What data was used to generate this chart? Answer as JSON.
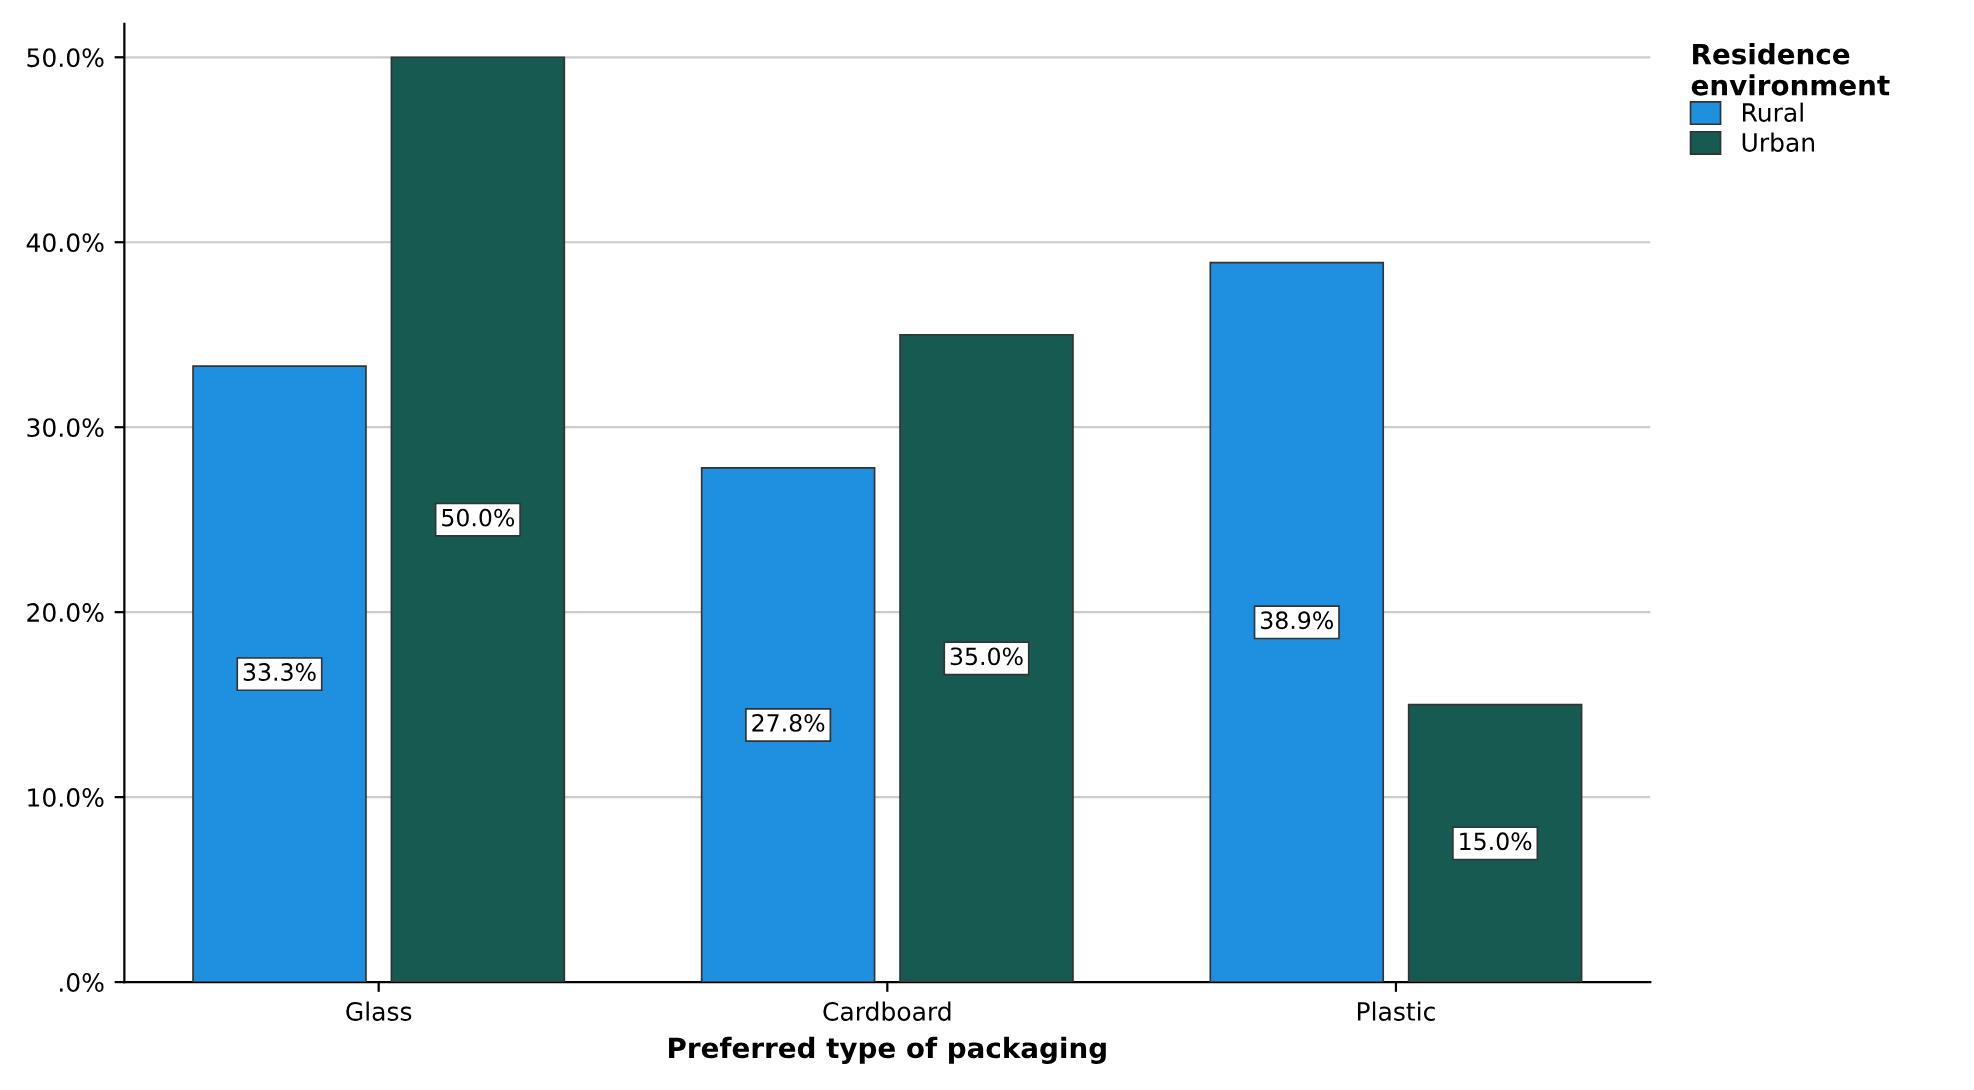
{
  "chart_data": {
    "type": "bar",
    "xlabel": "Preferred type of packaging",
    "legend_title": "Residence environment",
    "categories": [
      "Glass",
      "Cardboard",
      "Plastic"
    ],
    "series": [
      {
        "name": "Rural",
        "color": "#1f8fe0",
        "values": [
          33.3,
          27.8,
          38.9
        ],
        "value_labels": [
          "33.3%",
          "27.8%",
          "38.9%"
        ]
      },
      {
        "name": "Urban",
        "color": "#175a52",
        "values": [
          50.0,
          35.0,
          15.0
        ],
        "value_labels": [
          "50.0%",
          "35.0%",
          "15.0%"
        ]
      }
    ],
    "ylim": [
      0,
      51.8
    ],
    "yticks": [
      {
        "value": 0,
        "label": ".0%"
      },
      {
        "value": 10,
        "label": "10.0%"
      },
      {
        "value": 20,
        "label": "20.0%"
      },
      {
        "value": 30,
        "label": "30.0%"
      },
      {
        "value": 40,
        "label": "40.0%"
      },
      {
        "value": 50,
        "label": "50.0%"
      }
    ],
    "grid": "y",
    "legend": "top right"
  }
}
